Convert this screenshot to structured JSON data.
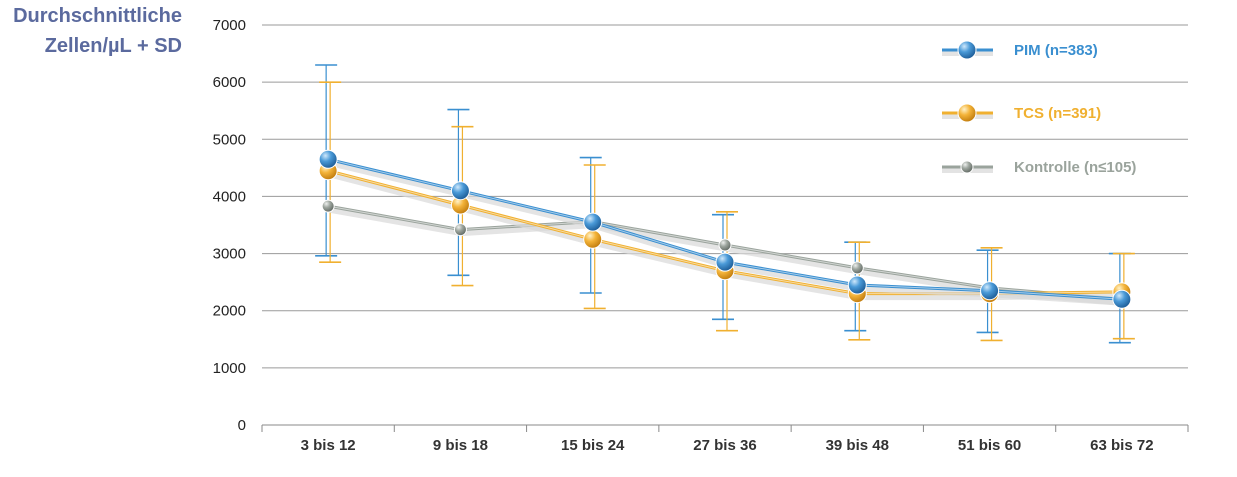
{
  "chart_data": {
    "type": "line",
    "ylabel_lines": [
      "Durchschnittliche",
      "Zellen/µL + SD"
    ],
    "categories": [
      "3 bis 12",
      "9 bis 18",
      "15 bis 24",
      "27 bis 36",
      "39 bis 48",
      "51 bis 60",
      "63 bis 72"
    ],
    "ylim": [
      0,
      7000
    ],
    "yticks": [
      0,
      1000,
      2000,
      3000,
      4000,
      5000,
      6000,
      7000
    ],
    "grid": true,
    "legend_position": "top-right",
    "series": [
      {
        "name": "PIM (n=383)",
        "color": "#3a8fd0",
        "marker": "large",
        "values": [
          4650,
          4100,
          3550,
          2850,
          2450,
          2350,
          2200
        ],
        "err_upper": [
          6300,
          5520,
          4680,
          3680,
          3200,
          3060,
          3000
        ],
        "err_lower": [
          2960,
          2620,
          2310,
          1850,
          1650,
          1620,
          1440
        ]
      },
      {
        "name": "TCS (n=391)",
        "color": "#f0b030",
        "marker": "large",
        "values": [
          4450,
          3850,
          3250,
          2700,
          2300,
          2300,
          2330
        ],
        "err_upper": [
          6000,
          5220,
          4550,
          3730,
          3200,
          3100,
          3000
        ],
        "err_lower": [
          2850,
          2440,
          2040,
          1650,
          1490,
          1480,
          1510
        ]
      },
      {
        "name": "Kontrolle (n≤105)",
        "color": "#9aa39c",
        "marker": "small",
        "values": [
          3830,
          3420,
          3560,
          3150,
          2750,
          2400,
          2200
        ],
        "err_upper": [],
        "err_lower": []
      }
    ]
  }
}
